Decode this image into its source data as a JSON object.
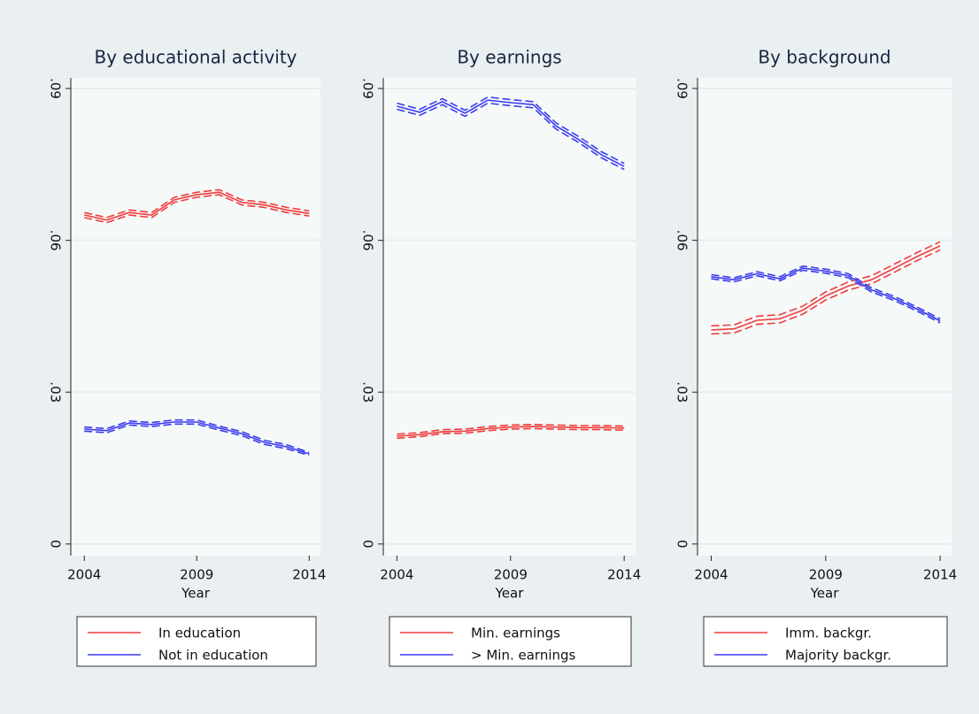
{
  "chart_data": [
    {
      "type": "line",
      "title": "By educational activity",
      "x_label": "Year",
      "x": [
        2004,
        2005,
        2006,
        2007,
        2008,
        2009,
        2010,
        2011,
        2012,
        2013,
        2014
      ],
      "xlim": [
        2003.4,
        2014.5
      ],
      "xticks": [
        2004,
        2009,
        2014
      ],
      "ylim": [
        -0.0023,
        0.0921
      ],
      "yticks": [
        0,
        {
          "value": 0.03,
          "label": ".03"
        },
        {
          "value": 0.06,
          "label": ".06"
        },
        {
          "value": 0.09,
          "label": ".09"
        }
      ],
      "grid": true,
      "series": [
        {
          "name": "In education",
          "color": "#f03c3c",
          "values": [
            0.065,
            0.064,
            0.0655,
            0.065,
            0.068,
            0.069,
            0.0695,
            0.0675,
            0.067,
            0.066,
            0.0653
          ],
          "lower": [
            0.0645,
            0.0635,
            0.065,
            0.0645,
            0.0675,
            0.0685,
            0.069,
            0.067,
            0.0665,
            0.0655,
            0.0648
          ],
          "upper": [
            0.0655,
            0.0645,
            0.066,
            0.0655,
            0.0685,
            0.0695,
            0.07,
            0.068,
            0.0675,
            0.0665,
            0.0658
          ]
        },
        {
          "name": "Not in education",
          "color": "#3c3cf0",
          "values": [
            0.0227,
            0.0224,
            0.0239,
            0.0236,
            0.0241,
            0.0241,
            0.0229,
            0.0218,
            0.0201,
            0.0192,
            0.0178
          ],
          "lower": [
            0.0223,
            0.022,
            0.0235,
            0.0232,
            0.0237,
            0.0237,
            0.0225,
            0.0214,
            0.0197,
            0.0188,
            0.0175
          ],
          "upper": [
            0.0231,
            0.0228,
            0.0243,
            0.024,
            0.0245,
            0.0245,
            0.0233,
            0.0222,
            0.0205,
            0.0196,
            0.0181
          ]
        }
      ]
    },
    {
      "type": "line",
      "title": "By earnings",
      "x_label": "Year",
      "x": [
        2004,
        2005,
        2006,
        2007,
        2008,
        2009,
        2010,
        2011,
        2012,
        2013,
        2014
      ],
      "xlim": [
        2003.4,
        2014.5
      ],
      "xticks": [
        2004,
        2009,
        2014
      ],
      "ylim": [
        -0.0023,
        0.0921
      ],
      "yticks": [
        0,
        {
          "value": 0.03,
          "label": ".03"
        },
        {
          "value": 0.06,
          "label": ".06"
        },
        {
          "value": 0.09,
          "label": ".09"
        }
      ],
      "grid": true,
      "series": [
        {
          "name": "Min. earnings",
          "color": "#f03c3c",
          "values": [
            0.0213,
            0.0216,
            0.0222,
            0.0223,
            0.0228,
            0.0231,
            0.0232,
            0.0231,
            0.023,
            0.023,
            0.0229
          ],
          "lower": [
            0.0209,
            0.0212,
            0.0218,
            0.0219,
            0.0224,
            0.0227,
            0.0228,
            0.0227,
            0.0226,
            0.0226,
            0.0225
          ],
          "upper": [
            0.0217,
            0.022,
            0.0226,
            0.0227,
            0.0232,
            0.0235,
            0.0236,
            0.0235,
            0.0234,
            0.0234,
            0.0233
          ]
        },
        {
          "name": "> Min. earnings",
          "color": "#3c3cf0",
          "values": [
            0.0865,
            0.0853,
            0.0874,
            0.0851,
            0.0877,
            0.0872,
            0.0868,
            0.0826,
            0.0799,
            0.0769,
            0.0746
          ],
          "lower": [
            0.0859,
            0.0847,
            0.0868,
            0.0845,
            0.0871,
            0.0866,
            0.0862,
            0.082,
            0.0793,
            0.0763,
            0.074
          ],
          "upper": [
            0.0871,
            0.0859,
            0.088,
            0.0857,
            0.0883,
            0.0878,
            0.0874,
            0.0832,
            0.0805,
            0.0775,
            0.0752
          ]
        }
      ]
    },
    {
      "type": "line",
      "title": "By background",
      "x_label": "Year",
      "x": [
        2004,
        2005,
        2006,
        2007,
        2008,
        2009,
        2010,
        2011,
        2012,
        2013,
        2014
      ],
      "xlim": [
        2003.4,
        2014.5
      ],
      "xticks": [
        2004,
        2009,
        2014
      ],
      "ylim": [
        -0.0023,
        0.0921
      ],
      "yticks": [
        0,
        {
          "value": 0.03,
          "label": ".03"
        },
        {
          "value": 0.06,
          "label": ".06"
        },
        {
          "value": 0.09,
          "label": ".09"
        }
      ],
      "grid": true,
      "series": [
        {
          "name": "Imm. backgr.",
          "color": "#f03c3c",
          "values": [
            0.0423,
            0.0425,
            0.0442,
            0.0445,
            0.0462,
            0.049,
            0.051,
            0.0522,
            0.0545,
            0.0568,
            0.0589
          ],
          "lower": [
            0.0415,
            0.0417,
            0.0434,
            0.0437,
            0.0454,
            0.0482,
            0.0502,
            0.0514,
            0.0537,
            0.056,
            0.0581
          ],
          "upper": [
            0.0431,
            0.0433,
            0.045,
            0.0453,
            0.047,
            0.0498,
            0.0518,
            0.053,
            0.0553,
            0.0576,
            0.0597
          ]
        },
        {
          "name": "Majority backgr.",
          "color": "#3c3cf0",
          "values": [
            0.0528,
            0.0522,
            0.0534,
            0.0524,
            0.0545,
            0.0539,
            0.053,
            0.0502,
            0.0485,
            0.0464,
            0.0441
          ],
          "lower": [
            0.0524,
            0.0518,
            0.053,
            0.052,
            0.0541,
            0.0535,
            0.0526,
            0.0498,
            0.0481,
            0.046,
            0.0437
          ],
          "upper": [
            0.0532,
            0.0526,
            0.0538,
            0.0528,
            0.0549,
            0.0543,
            0.0534,
            0.0506,
            0.0489,
            0.0468,
            0.0445
          ]
        }
      ]
    }
  ]
}
